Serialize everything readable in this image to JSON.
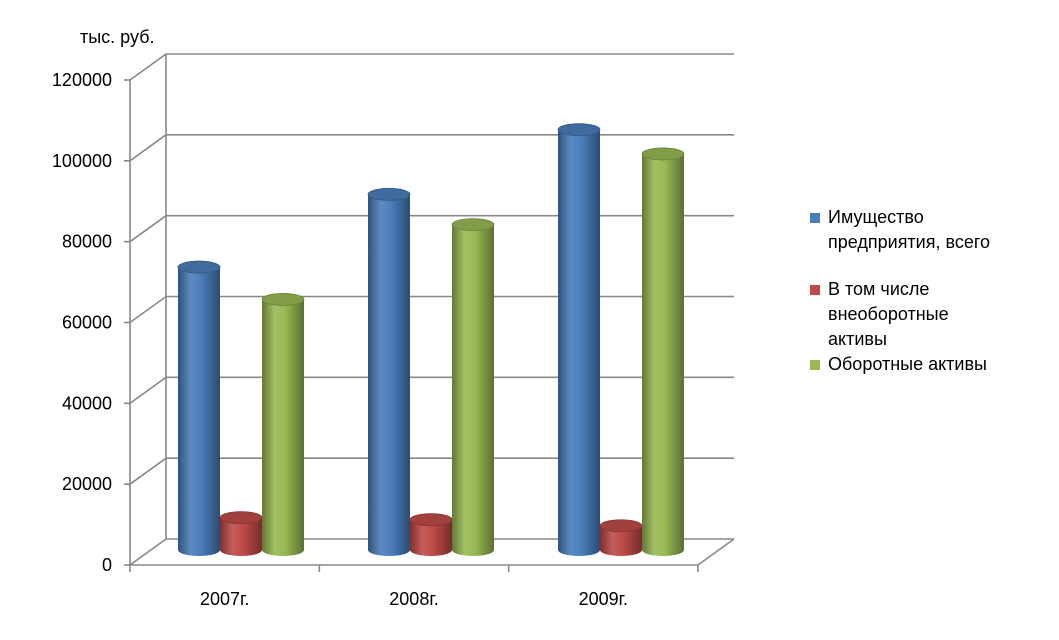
{
  "chart_data": {
    "type": "bar",
    "style": "3d-cylinder",
    "unit_label": "тыс. руб.",
    "categories": [
      "2007г.",
      "2008г.",
      "2009г."
    ],
    "series": [
      {
        "name": "Имущество предприятия, всего",
        "color": "#4a7ebb",
        "values": [
          70000,
          88000,
          104000
        ]
      },
      {
        "name": "В том числе внеоборотные активы",
        "color": "#be4b48",
        "values": [
          8000,
          7500,
          6000
        ]
      },
      {
        "name": "Оборотные активы",
        "color": "#98b954",
        "values": [
          62000,
          80500,
          98000
        ]
      }
    ],
    "ylim": [
      0,
      120000
    ],
    "yticks": [
      "0",
      "20000",
      "40000",
      "60000",
      "80000",
      "100000",
      "120000"
    ],
    "grid": true,
    "legend_position": "right"
  },
  "legend": {
    "items": [
      {
        "label_lines": [
          "Имущество",
          "предприятия, всего"
        ],
        "color": "#4a7ebb"
      },
      {
        "label_lines": [
          "В том числе",
          "внеоборотные",
          "активы"
        ],
        "color": "#be4b48"
      },
      {
        "label_lines": [
          "Оборотные активы"
        ],
        "color": "#98b954"
      }
    ]
  }
}
